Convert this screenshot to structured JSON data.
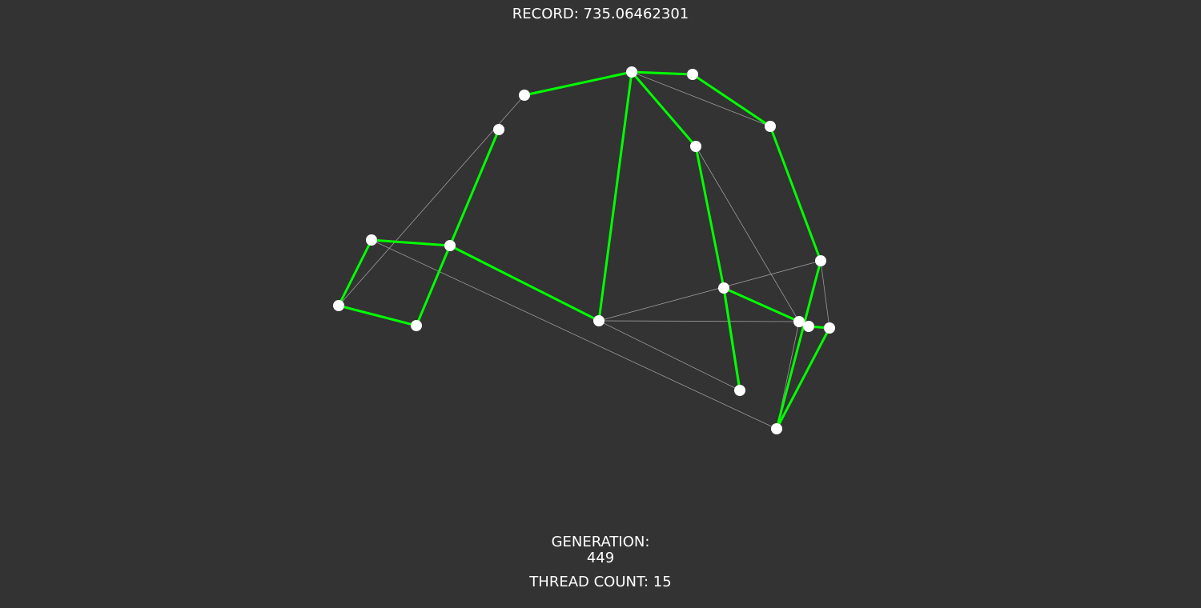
{
  "record": {
    "label": "RECORD:",
    "value": "735.06462301"
  },
  "generation": {
    "label": "GENERATION:",
    "value": "449"
  },
  "threads": {
    "label": "THREAD COUNT:",
    "value": "15"
  },
  "colors": {
    "background": "#333333",
    "node": "#ffffff",
    "best_path": "#00ff00",
    "candidate_path": "#9a9a9a",
    "text": "#ffffff"
  }
}
